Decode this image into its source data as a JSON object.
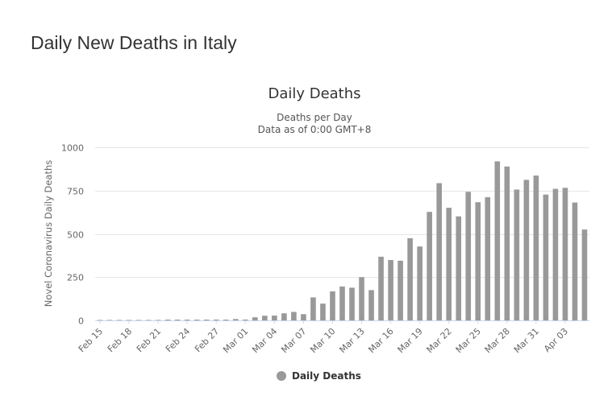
{
  "page": {
    "title": "Daily New Deaths in Italy"
  },
  "chart_data": {
    "type": "bar",
    "title": "Daily Deaths",
    "subtitle_lines": [
      "Deaths per Day",
      "Data as of 0:00 GMT+8"
    ],
    "xlabel": "",
    "ylabel": "Novel Coronavirus Daily Deaths",
    "ylim": [
      0,
      1000
    ],
    "yticks": [
      0,
      250,
      500,
      750,
      1000
    ],
    "grid": true,
    "legend": {
      "position": "bottom-center",
      "entries": [
        "Daily Deaths"
      ]
    },
    "colors": {
      "bar": "#999999",
      "grid": "#e6e6e6",
      "axis": "#ccd6eb"
    },
    "x_tick_labels": [
      "Feb 15",
      "Feb 18",
      "Feb 21",
      "Feb 24",
      "Feb 27",
      "Mar 01",
      "Mar 04",
      "Mar 07",
      "Mar 10",
      "Mar 13",
      "Mar 16",
      "Mar 19",
      "Mar 22",
      "Mar 25",
      "Mar 28",
      "Mar 31",
      "Apr 03"
    ],
    "categories": [
      "Feb 15",
      "Feb 16",
      "Feb 17",
      "Feb 18",
      "Feb 19",
      "Feb 20",
      "Feb 21",
      "Feb 22",
      "Feb 23",
      "Feb 24",
      "Feb 25",
      "Feb 26",
      "Feb 27",
      "Feb 28",
      "Feb 29",
      "Mar 01",
      "Mar 02",
      "Mar 03",
      "Mar 04",
      "Mar 05",
      "Mar 06",
      "Mar 07",
      "Mar 08",
      "Mar 09",
      "Mar 10",
      "Mar 11",
      "Mar 12",
      "Mar 13",
      "Mar 14",
      "Mar 15",
      "Mar 16",
      "Mar 17",
      "Mar 18",
      "Mar 19",
      "Mar 20",
      "Mar 21",
      "Mar 22",
      "Mar 23",
      "Mar 24",
      "Mar 25",
      "Mar 26",
      "Mar 27",
      "Mar 28",
      "Mar 29",
      "Mar 30",
      "Mar 31",
      "Apr 01",
      "Apr 02",
      "Apr 03",
      "Apr 04",
      "Apr 05"
    ],
    "series": [
      {
        "name": "Daily Deaths",
        "values": [
          0,
          0,
          0,
          0,
          0,
          0,
          0,
          1,
          1,
          4,
          3,
          2,
          5,
          4,
          8,
          5,
          18,
          27,
          28,
          41,
          49,
          36,
          133,
          97,
          168,
          196,
          189,
          250,
          175,
          368,
          349,
          345,
          475,
          427,
          627,
          793,
          651,
          601,
          743,
          683,
          712,
          919,
          889,
          756,
          812,
          837,
          727,
          760,
          766,
          681,
          525
        ]
      }
    ]
  }
}
